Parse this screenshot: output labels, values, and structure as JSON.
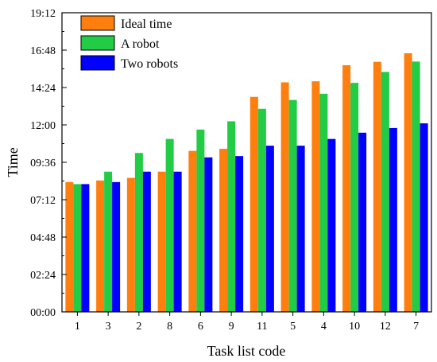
{
  "chart_data": {
    "type": "bar",
    "xlabel": "Task list code",
    "ylabel": "Time",
    "categories": [
      "1",
      "3",
      "2",
      "8",
      "6",
      "9",
      "11",
      "5",
      "4",
      "10",
      "12",
      "7"
    ],
    "y_ticks": [
      "00:00",
      "02:24",
      "04:48",
      "07:12",
      "09:36",
      "12:00",
      "14:24",
      "16:48",
      "19:12"
    ],
    "ylim_minutes": [
      0,
      1152
    ],
    "series": [
      {
        "name": "Ideal time",
        "color": "#ff7f0e",
        "values_minutes": [
          500,
          506,
          516,
          540,
          620,
          628,
          828,
          884,
          888,
          950,
          963,
          996
        ]
      },
      {
        "name": "A robot",
        "color": "#22cc44",
        "values_minutes": [
          492,
          540,
          612,
          666,
          702,
          734,
          782,
          816,
          840,
          882,
          924,
          964
        ]
      },
      {
        "name": "Two robots",
        "color": "#0000ff",
        "values_minutes": [
          492,
          500,
          540,
          540,
          595,
          600,
          640,
          640,
          666,
          690,
          708,
          726
        ]
      }
    ],
    "legend_position": "top-left",
    "grid": false
  }
}
